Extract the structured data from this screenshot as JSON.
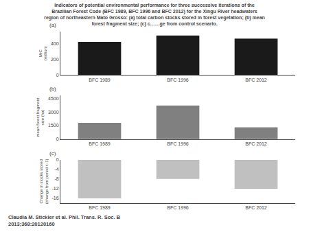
{
  "title": "Indicators of potential environmental performance for three successive iterations of the\nBrazilian Forest Code (BFC 1989, BFC 1996 and BFC 2012) for the Xingu River headwaters\nregion of northeastern Mato Grosso: (a) total carbon stocks stored in forest vegetation; (b) mean\nforest fragment size; (c) c……ge from control scenario.",
  "annotations": [
    "Claudia M. Stickler et al. Phil. Trans. R. Soc. B\n2013;368:20120160"
  ],
  "chart_data": [
    {
      "type": "bar",
      "title": "(a)",
      "categories": [
        "BFC 1989",
        "BFC 1996",
        "BFC 2012"
      ],
      "values": [
        420,
        500,
        460
      ],
      "color": "#1a1a1a",
      "ylim": [
        0,
        550
      ],
      "yticks": [
        0,
        200,
        400
      ],
      "ylabel": "MtC\n(million)",
      "grid": false
    },
    {
      "type": "bar",
      "title": "(b)",
      "categories": [
        "BFC 1989",
        "BFC 1996",
        "BFC 2012"
      ],
      "values": [
        1800,
        3700,
        1300
      ],
      "color": "#808080",
      "ylim": [
        0,
        4800
      ],
      "yticks": [
        0,
        1500,
        3000,
        4500
      ],
      "ylabel": "mean forest fragment\nsize (ha)",
      "grid": false
    },
    {
      "type": "bar",
      "title": "(c)",
      "categories": [
        "BFC 1989",
        "BFC 1996",
        "BFC 2012"
      ],
      "values": [
        -16,
        -8,
        -12
      ],
      "color": "#c0c0c0",
      "ylim": [
        -18,
        0
      ],
      "yticks": [
        0,
        -4,
        -8,
        -12,
        -16
      ],
      "ylabel": "Change in stocks stored\n(change from period t−1)",
      "grid": false
    }
  ]
}
